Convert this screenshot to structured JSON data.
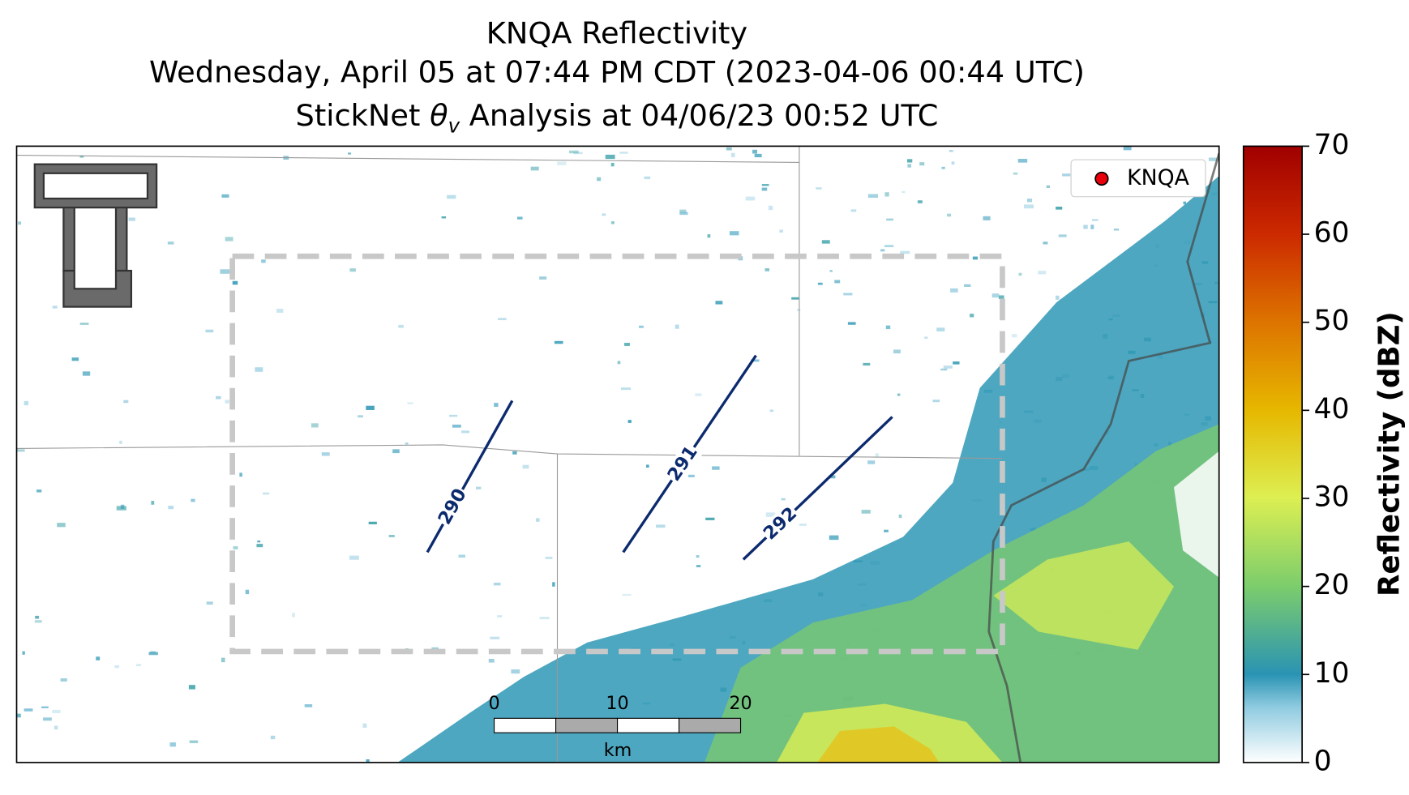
{
  "header": {
    "title": "KNQA Reflectivity",
    "subtitle": "Wednesday, April 05 at 07:44 PM CDT (2023-04-06 00:44 UTC)",
    "analysis": {
      "prefix": "StickNet ",
      "symbol": "θ",
      "subscript": "v",
      "suffix": " Analysis at 04/06/23 00:52 UTC"
    }
  },
  "legend": {
    "label": "KNQA",
    "color": "#e8000b"
  },
  "contours": [
    290,
    291,
    292
  ],
  "scalebar": {
    "ticks": [
      0,
      10,
      20
    ],
    "unit": "km"
  },
  "colorbar": {
    "label": "Reflectivity (dBZ)",
    "lim": [
      0,
      70
    ],
    "ticks": [
      0,
      10,
      20,
      30,
      40,
      50,
      60,
      70
    ]
  }
}
